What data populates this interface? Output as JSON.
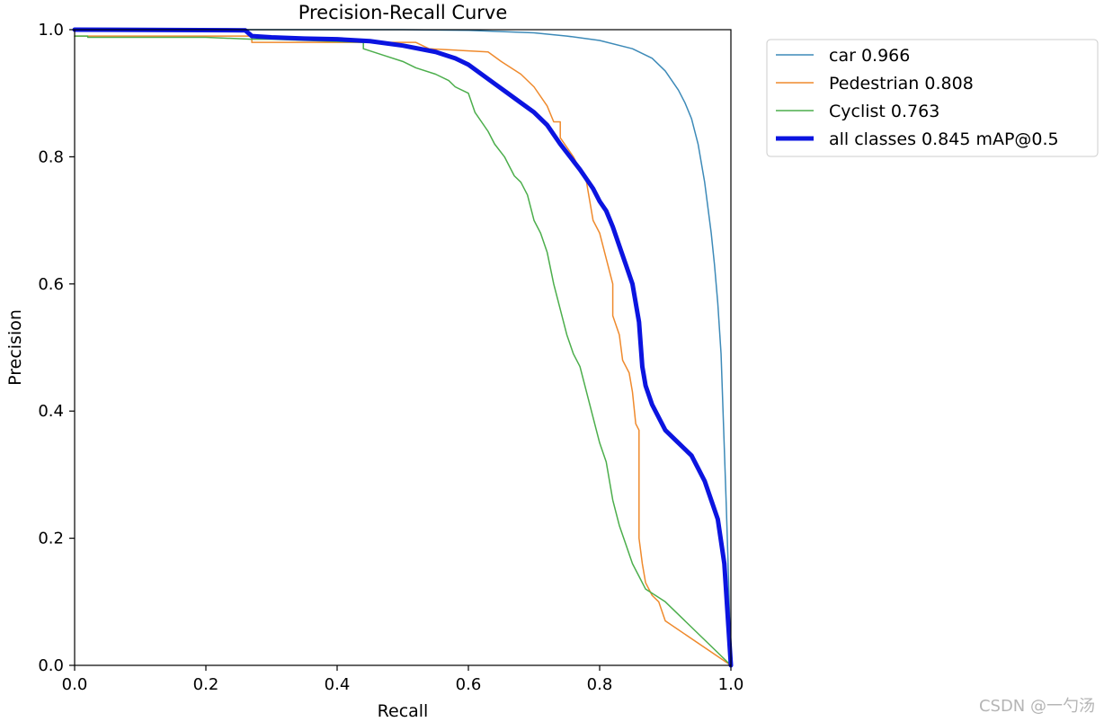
{
  "chart_data": {
    "type": "line",
    "title": "Precision-Recall Curve",
    "xlabel": "Recall",
    "ylabel": "Precision",
    "xlim": [
      0,
      1
    ],
    "ylim": [
      0,
      1
    ],
    "xticks": [
      {
        "value": 0.0,
        "label": "0.0"
      },
      {
        "value": 0.2,
        "label": "0.2"
      },
      {
        "value": 0.4,
        "label": "0.4"
      },
      {
        "value": 0.6,
        "label": "0.6"
      },
      {
        "value": 0.8,
        "label": "0.8"
      },
      {
        "value": 1.0,
        "label": "1.0"
      }
    ],
    "yticks": [
      {
        "value": 0.0,
        "label": "0.0"
      },
      {
        "value": 0.2,
        "label": "0.2"
      },
      {
        "value": 0.4,
        "label": "0.4"
      },
      {
        "value": 0.6,
        "label": "0.6"
      },
      {
        "value": 0.8,
        "label": "0.8"
      },
      {
        "value": 1.0,
        "label": "1.0"
      }
    ],
    "legend_position": "outside-right",
    "series": [
      {
        "name": "car 0.966",
        "color": "#3d8ab8",
        "width": "thin",
        "points": [
          [
            0,
            1.0
          ],
          [
            0.3,
            1.0
          ],
          [
            0.5,
            1.0
          ],
          [
            0.6,
            0.999
          ],
          [
            0.7,
            0.995
          ],
          [
            0.75,
            0.99
          ],
          [
            0.8,
            0.983
          ],
          [
            0.85,
            0.97
          ],
          [
            0.88,
            0.955
          ],
          [
            0.9,
            0.935
          ],
          [
            0.92,
            0.905
          ],
          [
            0.93,
            0.885
          ],
          [
            0.94,
            0.86
          ],
          [
            0.95,
            0.82
          ],
          [
            0.96,
            0.76
          ],
          [
            0.97,
            0.68
          ],
          [
            0.975,
            0.63
          ],
          [
            0.98,
            0.57
          ],
          [
            0.985,
            0.49
          ],
          [
            0.99,
            0.34
          ],
          [
            0.993,
            0.25
          ],
          [
            0.996,
            0.15
          ],
          [
            1.0,
            0.0
          ]
        ]
      },
      {
        "name": "Pedestrian 0.808",
        "color": "#ef8a2d",
        "width": "thin",
        "points": [
          [
            0,
            0.99
          ],
          [
            0.27,
            0.99
          ],
          [
            0.27,
            0.98
          ],
          [
            0.4,
            0.98
          ],
          [
            0.52,
            0.98
          ],
          [
            0.54,
            0.97
          ],
          [
            0.63,
            0.965
          ],
          [
            0.65,
            0.95
          ],
          [
            0.68,
            0.93
          ],
          [
            0.7,
            0.91
          ],
          [
            0.72,
            0.88
          ],
          [
            0.73,
            0.855
          ],
          [
            0.74,
            0.855
          ],
          [
            0.74,
            0.83
          ],
          [
            0.76,
            0.8
          ],
          [
            0.78,
            0.76
          ],
          [
            0.79,
            0.7
          ],
          [
            0.8,
            0.68
          ],
          [
            0.81,
            0.64
          ],
          [
            0.82,
            0.6
          ],
          [
            0.82,
            0.55
          ],
          [
            0.83,
            0.52
          ],
          [
            0.835,
            0.48
          ],
          [
            0.84,
            0.47
          ],
          [
            0.845,
            0.46
          ],
          [
            0.85,
            0.43
          ],
          [
            0.855,
            0.38
          ],
          [
            0.86,
            0.37
          ],
          [
            0.86,
            0.2
          ],
          [
            0.865,
            0.16
          ],
          [
            0.87,
            0.13
          ],
          [
            0.88,
            0.11
          ],
          [
            0.89,
            0.1
          ],
          [
            0.9,
            0.07
          ],
          [
            1.0,
            0.0
          ]
        ]
      },
      {
        "name": "Cyclist 0.763",
        "color": "#4cae4c",
        "width": "thin",
        "points": [
          [
            0,
            0.99
          ],
          [
            0.02,
            0.99
          ],
          [
            0.02,
            0.988
          ],
          [
            0.2,
            0.988
          ],
          [
            0.27,
            0.985
          ],
          [
            0.3,
            0.985
          ],
          [
            0.44,
            0.98
          ],
          [
            0.44,
            0.97
          ],
          [
            0.47,
            0.96
          ],
          [
            0.5,
            0.95
          ],
          [
            0.52,
            0.94
          ],
          [
            0.55,
            0.93
          ],
          [
            0.57,
            0.92
          ],
          [
            0.58,
            0.91
          ],
          [
            0.6,
            0.9
          ],
          [
            0.61,
            0.87
          ],
          [
            0.63,
            0.84
          ],
          [
            0.64,
            0.82
          ],
          [
            0.655,
            0.8
          ],
          [
            0.66,
            0.79
          ],
          [
            0.67,
            0.77
          ],
          [
            0.68,
            0.76
          ],
          [
            0.69,
            0.74
          ],
          [
            0.7,
            0.7
          ],
          [
            0.71,
            0.68
          ],
          [
            0.72,
            0.65
          ],
          [
            0.73,
            0.6
          ],
          [
            0.74,
            0.56
          ],
          [
            0.75,
            0.52
          ],
          [
            0.76,
            0.49
          ],
          [
            0.77,
            0.47
          ],
          [
            0.78,
            0.43
          ],
          [
            0.79,
            0.39
          ],
          [
            0.8,
            0.35
          ],
          [
            0.81,
            0.32
          ],
          [
            0.82,
            0.26
          ],
          [
            0.83,
            0.22
          ],
          [
            0.84,
            0.19
          ],
          [
            0.85,
            0.16
          ],
          [
            0.86,
            0.14
          ],
          [
            0.87,
            0.12
          ],
          [
            0.9,
            0.1
          ],
          [
            1.0,
            0.0
          ]
        ]
      },
      {
        "name": "all classes 0.845 mAP@0.5",
        "color": "#0b14e0",
        "width": "thick",
        "points": [
          [
            0,
            1.0
          ],
          [
            0.26,
            0.999
          ],
          [
            0.27,
            0.99
          ],
          [
            0.3,
            0.988
          ],
          [
            0.35,
            0.986
          ],
          [
            0.4,
            0.985
          ],
          [
            0.45,
            0.982
          ],
          [
            0.5,
            0.975
          ],
          [
            0.55,
            0.965
          ],
          [
            0.58,
            0.955
          ],
          [
            0.6,
            0.945
          ],
          [
            0.62,
            0.93
          ],
          [
            0.64,
            0.915
          ],
          [
            0.66,
            0.9
          ],
          [
            0.68,
            0.885
          ],
          [
            0.7,
            0.87
          ],
          [
            0.72,
            0.85
          ],
          [
            0.74,
            0.82
          ],
          [
            0.755,
            0.8
          ],
          [
            0.77,
            0.78
          ],
          [
            0.78,
            0.765
          ],
          [
            0.79,
            0.75
          ],
          [
            0.8,
            0.73
          ],
          [
            0.81,
            0.715
          ],
          [
            0.82,
            0.69
          ],
          [
            0.83,
            0.66
          ],
          [
            0.84,
            0.63
          ],
          [
            0.85,
            0.6
          ],
          [
            0.86,
            0.54
          ],
          [
            0.865,
            0.47
          ],
          [
            0.87,
            0.44
          ],
          [
            0.88,
            0.41
          ],
          [
            0.89,
            0.39
          ],
          [
            0.9,
            0.37
          ],
          [
            0.92,
            0.35
          ],
          [
            0.94,
            0.33
          ],
          [
            0.95,
            0.31
          ],
          [
            0.96,
            0.29
          ],
          [
            0.97,
            0.26
          ],
          [
            0.98,
            0.23
          ],
          [
            0.99,
            0.16
          ],
          [
            0.995,
            0.08
          ],
          [
            1.0,
            0.0
          ]
        ]
      }
    ]
  },
  "watermark": "CSDN @一勺汤"
}
